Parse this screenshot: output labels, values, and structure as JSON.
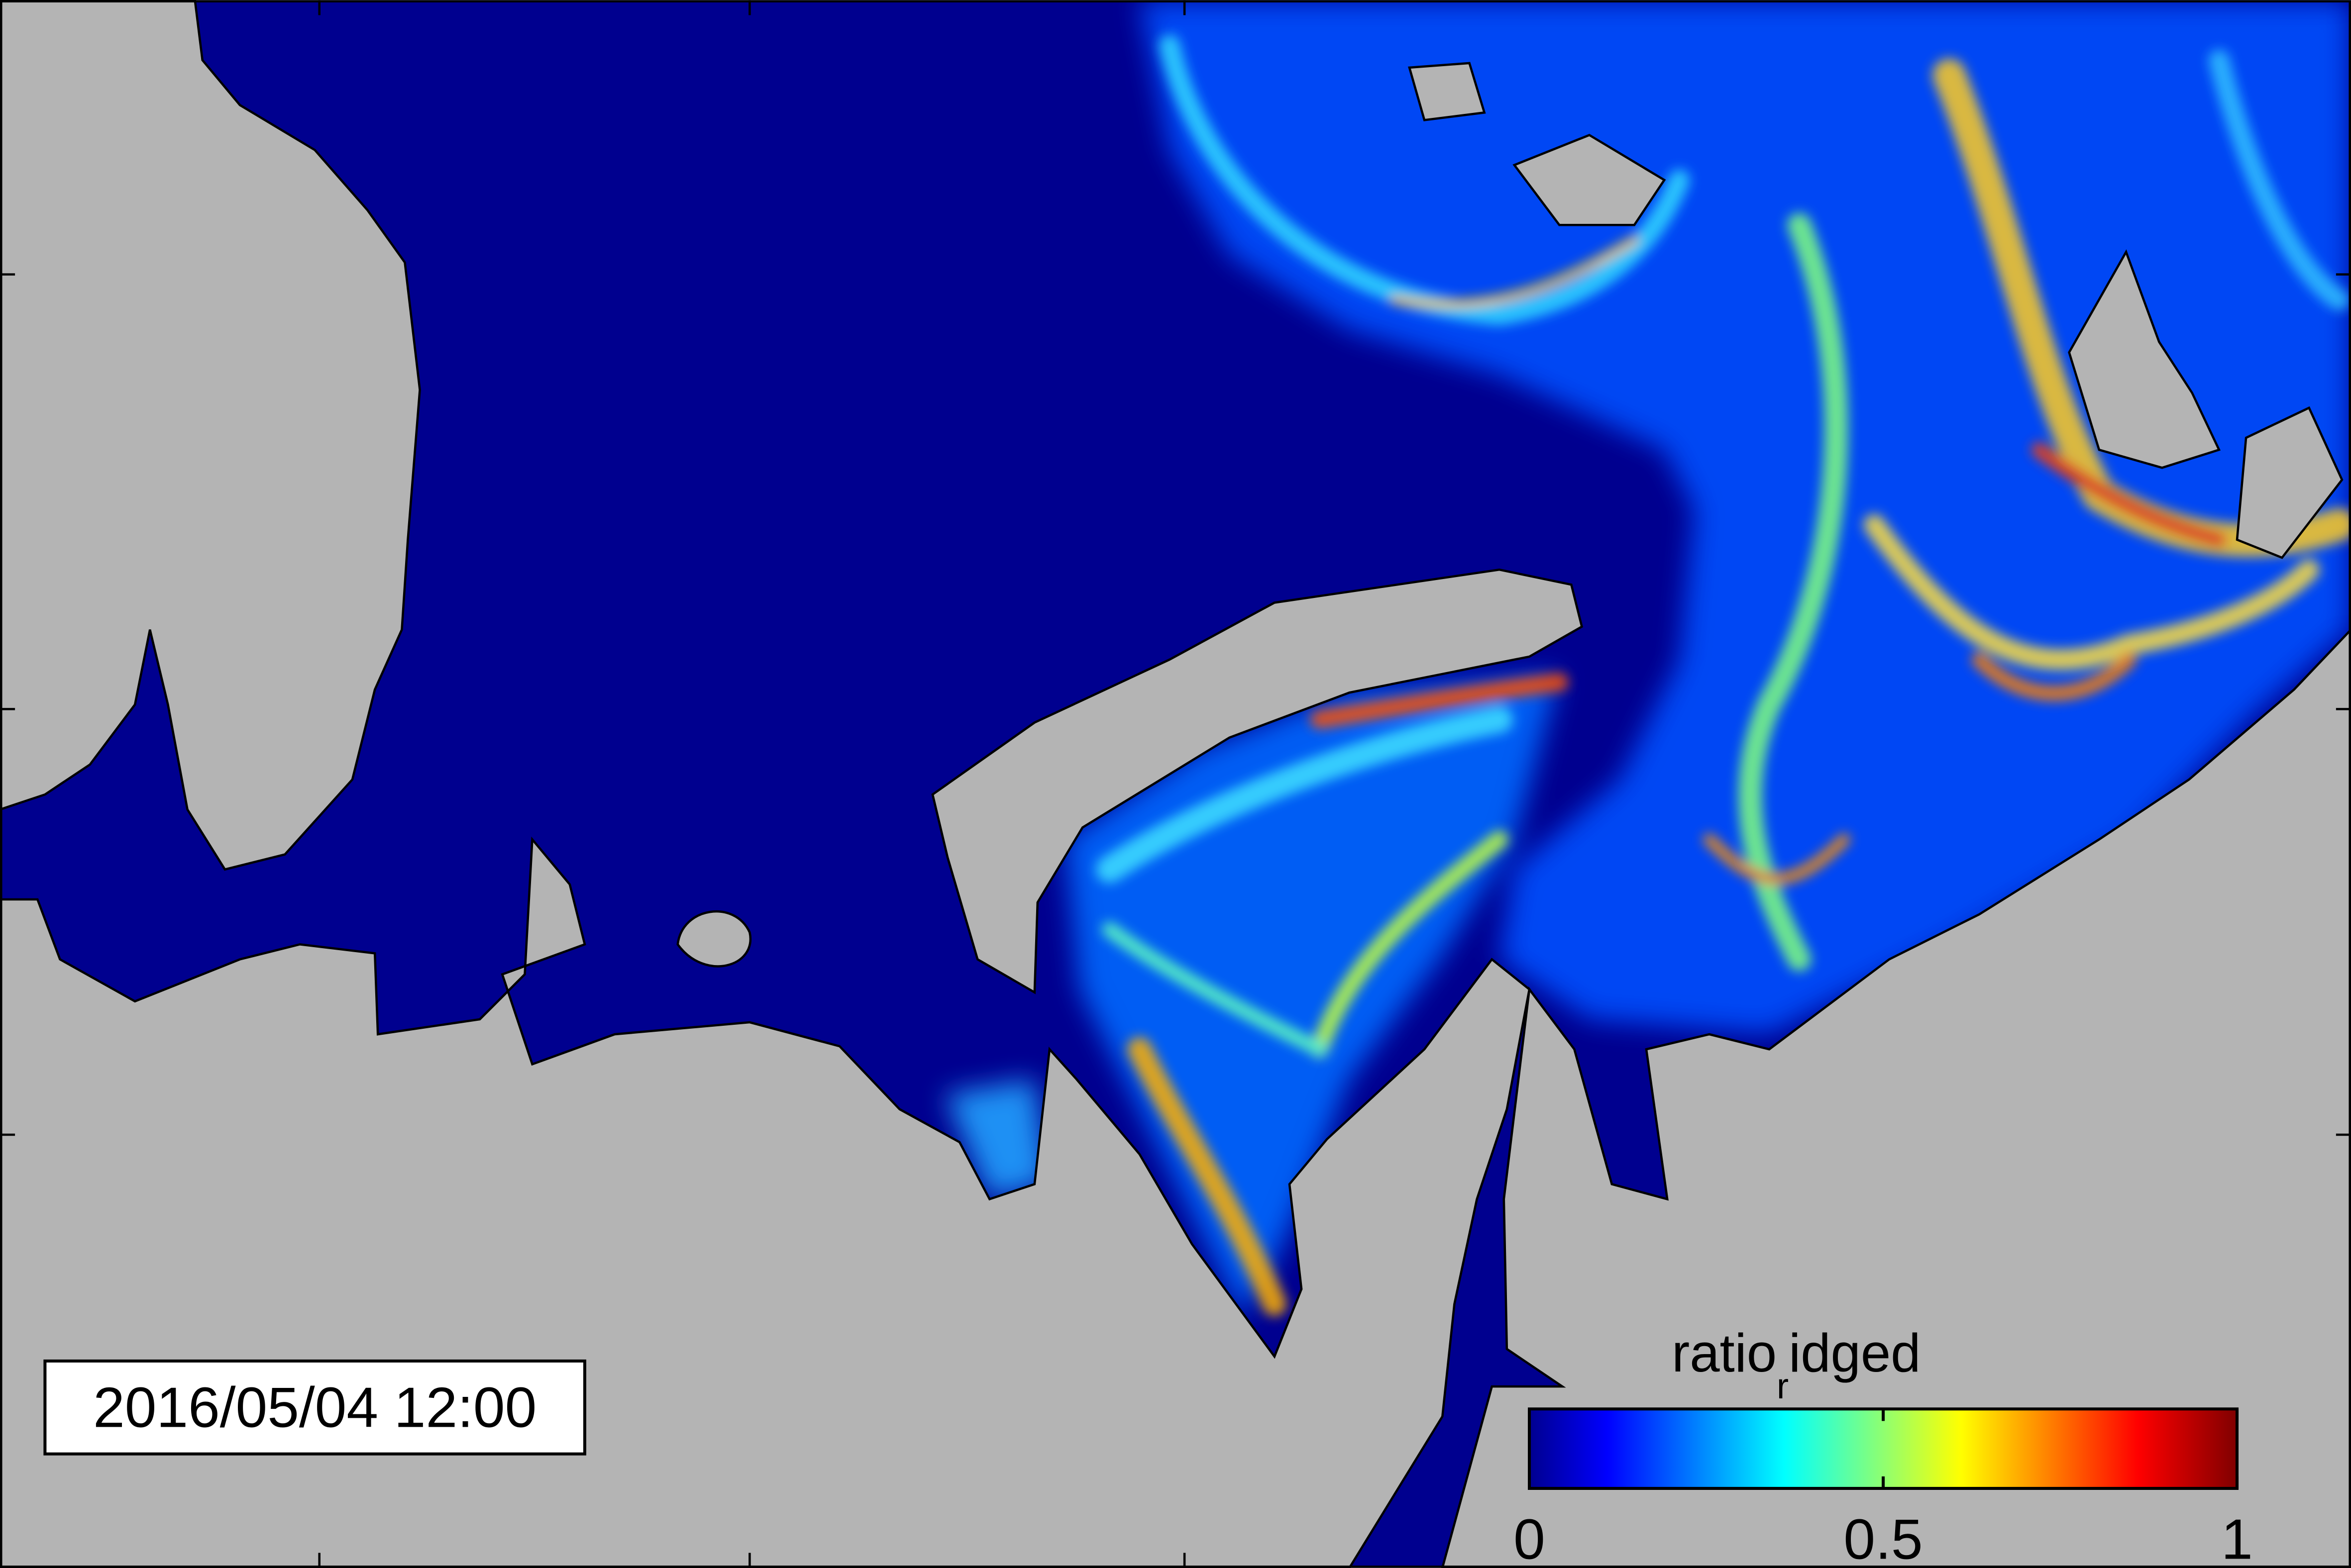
{
  "timestamp": "2016/05/04 12:00",
  "colorbar": {
    "label_parts": [
      "ratio",
      "r",
      "idged"
    ],
    "lim": [
      0,
      1
    ],
    "ticks": [
      0,
      0.5,
      1
    ],
    "colormap": "jet"
  }
}
